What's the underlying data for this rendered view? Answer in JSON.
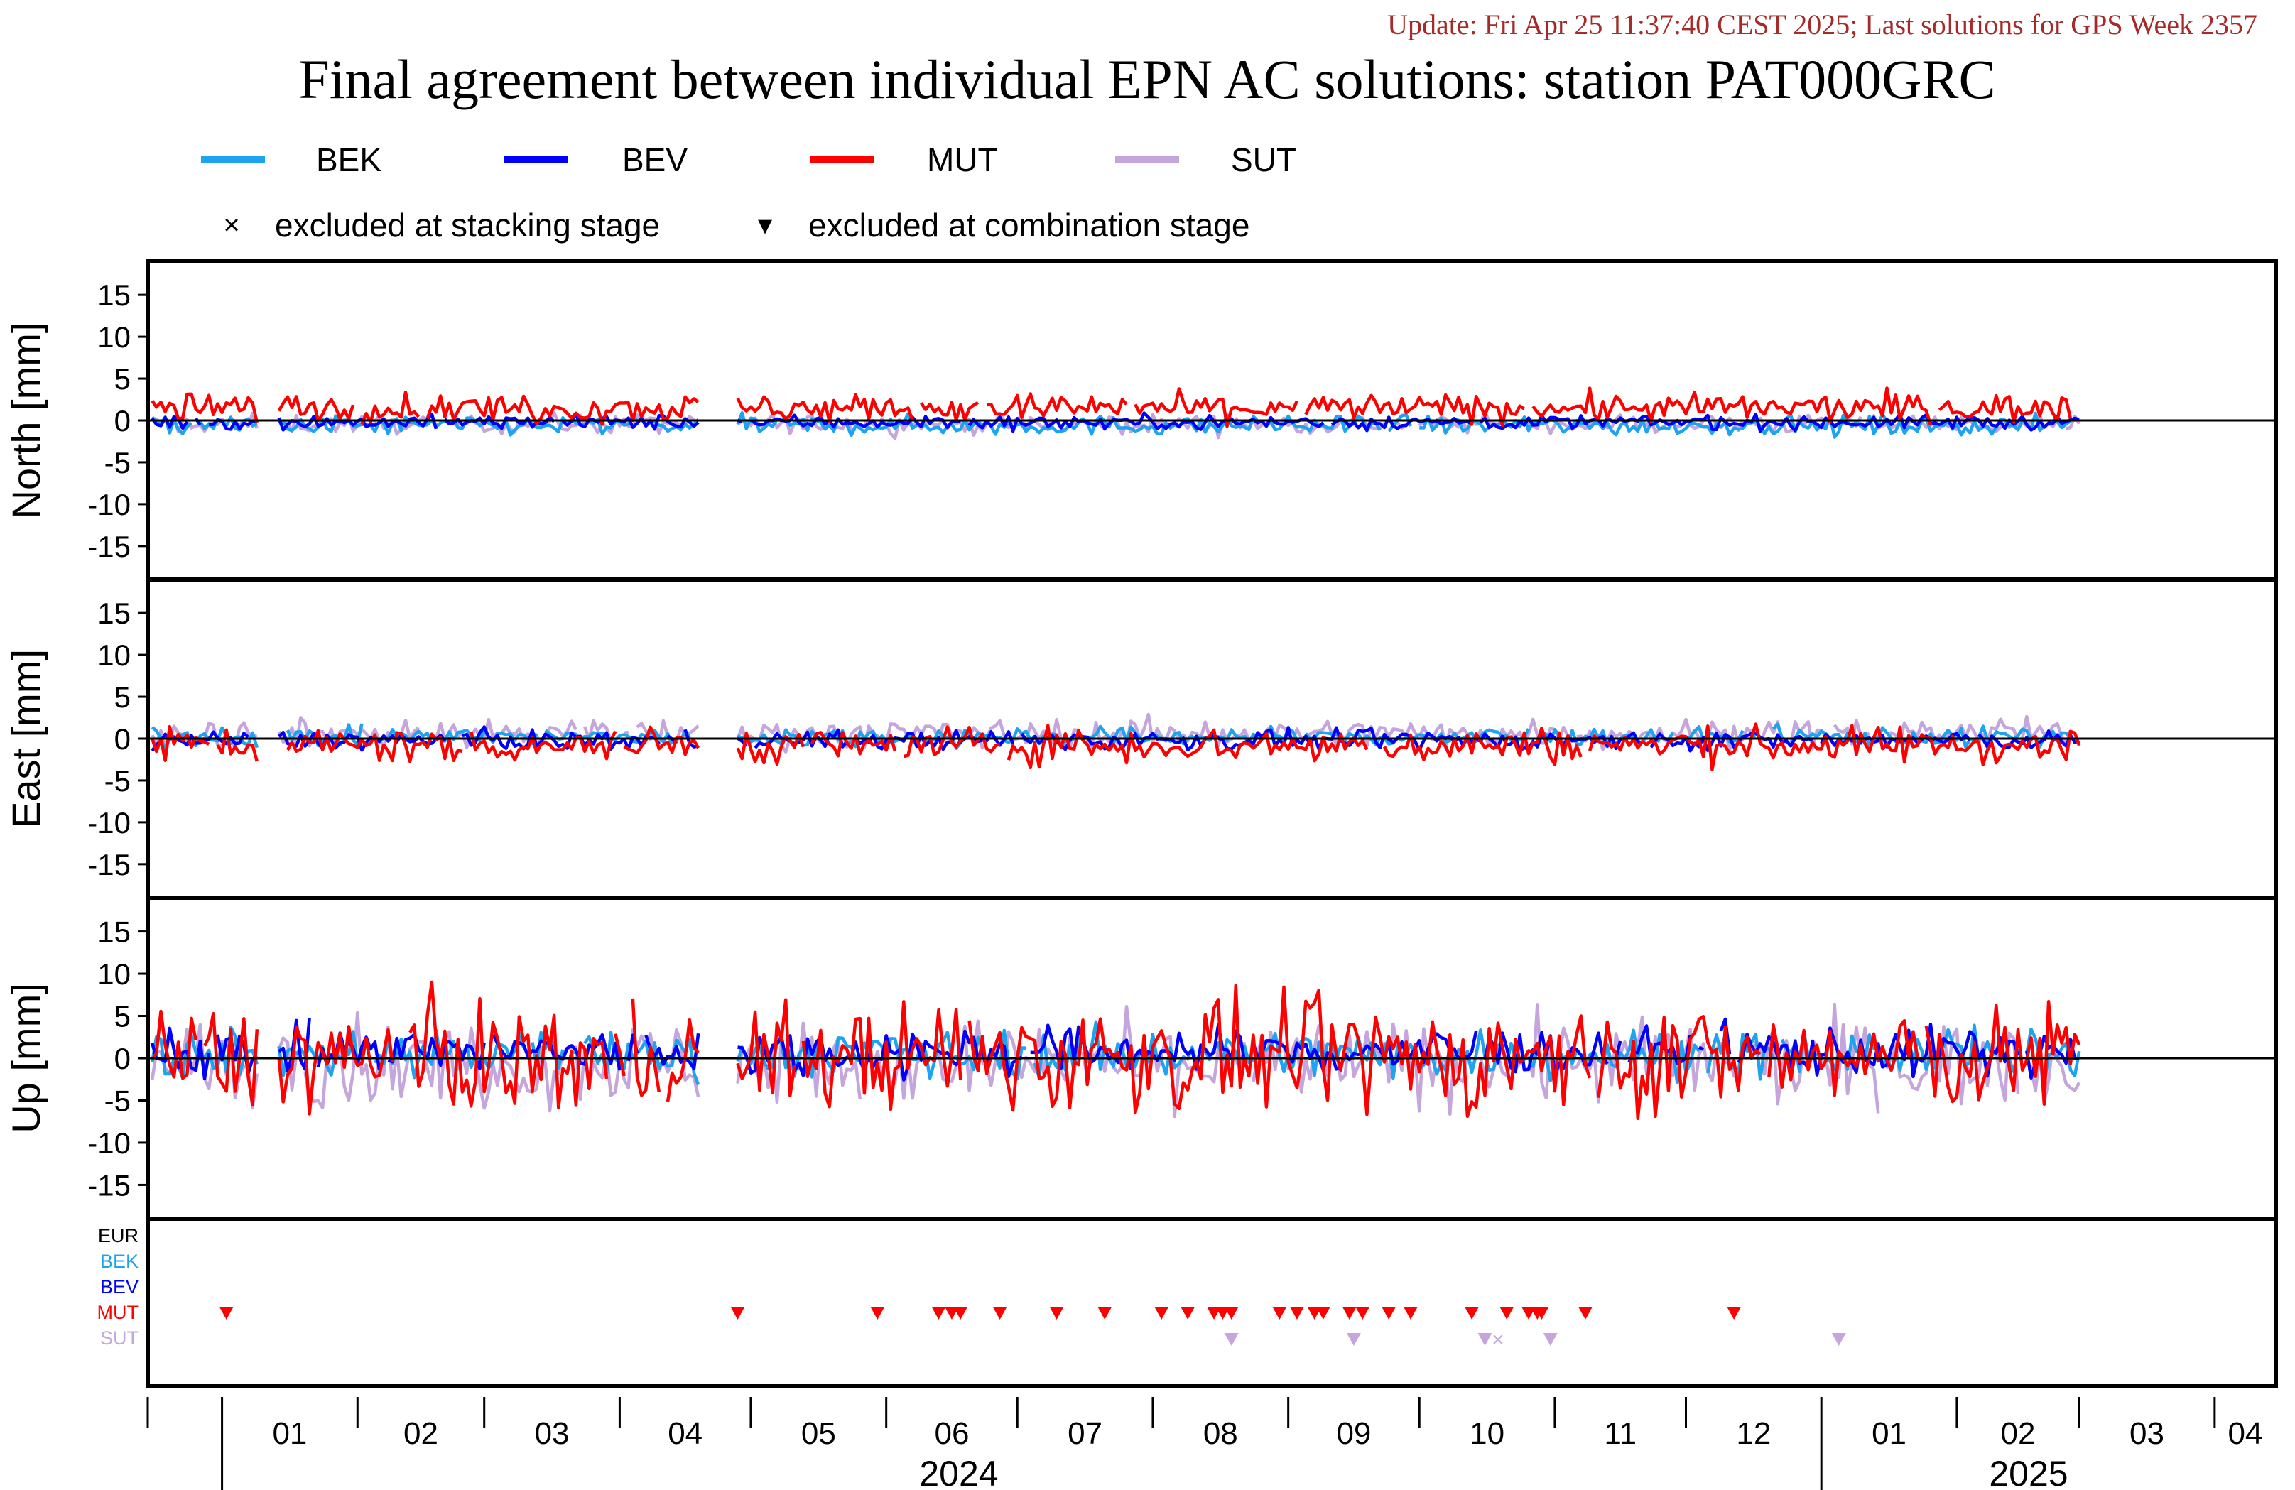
{
  "update_line": "Update: Fri Apr 25 11:37:40 CEST 2025; Last solutions for GPS Week 2357",
  "colors": {
    "update": "#a52a2a",
    "BEK": "#1ea3f0",
    "BEV": "#0000ff",
    "MUT": "#ff0000",
    "SUT": "#c4a6dc",
    "EUR": "#000000"
  },
  "legend": {
    "series": [
      "BEK",
      "BEV",
      "MUT",
      "SUT"
    ],
    "marker_stacking": "×",
    "marker_combination": "▾",
    "stacking_label": "excluded at stacking stage",
    "combination_label": "excluded at combination stage"
  },
  "exclusion_panel": {
    "rows": [
      "EUR",
      "BEK",
      "BEV",
      "MUT",
      "SUT"
    ]
  },
  "chart_data": [
    {
      "type": "line",
      "title": "Final agreement between individual EPN AC solutions: station PAT000GRC",
      "ylabel": "North [mm]",
      "ylim": [
        -19,
        19
      ],
      "yticks": [
        15,
        10,
        5,
        0,
        -5,
        -10,
        -15
      ],
      "x_range": [
        "2023-12-15",
        "2025-04-15"
      ],
      "x_data_range": [
        "2023-12-16",
        "2025-03-01"
      ],
      "series": [
        {
          "name": "BEK",
          "mean": -0.6,
          "amplitude": 0.8
        },
        {
          "name": "BEV",
          "mean": -0.2,
          "amplitude": 0.6
        },
        {
          "name": "MUT",
          "mean": 1.5,
          "amplitude": 1.2
        },
        {
          "name": "SUT",
          "mean": -0.4,
          "amplitude": 0.8
        }
      ]
    },
    {
      "type": "line",
      "ylabel": "East [mm]",
      "ylim": [
        -19,
        19
      ],
      "yticks": [
        15,
        10,
        5,
        0,
        -5,
        -10,
        -15
      ],
      "series": [
        {
          "name": "BEK",
          "mean": 0.2,
          "amplitude": 0.8
        },
        {
          "name": "BEV",
          "mean": -0.2,
          "amplitude": 0.8
        },
        {
          "name": "MUT",
          "mean": -0.8,
          "amplitude": 1.5
        },
        {
          "name": "SUT",
          "mean": 0.6,
          "amplitude": 1.2
        }
      ]
    },
    {
      "type": "line",
      "ylabel": "Up [mm]",
      "ylim": [
        -19,
        19
      ],
      "yticks": [
        15,
        10,
        5,
        0,
        -5,
        -10,
        -15
      ],
      "series": [
        {
          "name": "BEK",
          "mean": 0.5,
          "amplitude": 2.0
        },
        {
          "name": "BEV",
          "mean": 0.8,
          "amplitude": 2.0
        },
        {
          "name": "MUT",
          "mean": 0.0,
          "amplitude": 4.5
        },
        {
          "name": "SUT",
          "mean": -0.5,
          "amplitude": 3.5
        }
      ]
    }
  ],
  "exclusions": {
    "MUT": [
      "2024-01-02",
      "2024-04-28",
      "2024-05-30",
      "2024-06-13",
      "2024-06-16",
      "2024-06-18",
      "2024-06-27",
      "2024-07-10",
      "2024-07-21",
      "2024-08-03",
      "2024-08-09",
      "2024-08-15",
      "2024-08-17",
      "2024-08-19",
      "2024-08-30",
      "2024-09-03",
      "2024-09-07",
      "2024-09-09",
      "2024-09-15",
      "2024-09-18",
      "2024-09-24",
      "2024-09-29",
      "2024-10-13",
      "2024-10-21",
      "2024-10-26",
      "2024-10-28",
      "2024-10-29",
      "2024-11-08",
      "2024-12-12"
    ],
    "SUT_combination": [
      "2024-08-19",
      "2024-09-16",
      "2024-10-16",
      "2024-10-31",
      "2025-01-05"
    ],
    "SUT_stacking": [
      "2024-10-19"
    ]
  },
  "x_axis": {
    "months": [
      "01",
      "02",
      "03",
      "04",
      "05",
      "06",
      "07",
      "08",
      "09",
      "10",
      "11",
      "12",
      "01",
      "02",
      "03",
      "04"
    ],
    "years": [
      "2024",
      "2025"
    ],
    "month_starts": [
      "2024-01-01",
      "2024-02-01",
      "2024-03-01",
      "2024-04-01",
      "2024-05-01",
      "2024-06-01",
      "2024-07-01",
      "2024-08-01",
      "2024-09-01",
      "2024-10-01",
      "2024-11-01",
      "2024-12-01",
      "2025-01-01",
      "2025-02-01",
      "2025-03-01",
      "2025-04-01"
    ]
  }
}
